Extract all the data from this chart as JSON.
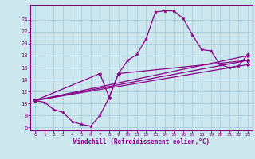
{
  "background_color": "#cce8ee",
  "grid_color": "#a0c8d8",
  "line_color": "#880088",
  "markersize": 3,
  "linewidth": 0.9,
  "xlabel": "Windchill (Refroidissement éolien,°C)",
  "xlim": [
    -0.5,
    23.5
  ],
  "ylim": [
    5.5,
    26.5
  ],
  "xticks": [
    0,
    1,
    2,
    3,
    4,
    5,
    6,
    7,
    8,
    9,
    10,
    11,
    12,
    13,
    14,
    15,
    16,
    17,
    18,
    19,
    20,
    21,
    22,
    23
  ],
  "yticks": [
    6,
    8,
    10,
    12,
    14,
    16,
    18,
    20,
    22,
    24
  ],
  "series_wavy": [
    [
      0,
      10.5
    ],
    [
      1,
      10.2
    ],
    [
      2,
      9.0
    ],
    [
      3,
      8.5
    ],
    [
      4,
      7.0
    ],
    [
      5,
      6.5
    ],
    [
      6,
      6.2
    ],
    [
      7,
      8.0
    ],
    [
      8,
      11.0
    ],
    [
      9,
      15.0
    ],
    [
      10,
      17.2
    ],
    [
      11,
      18.2
    ],
    [
      12,
      20.8
    ],
    [
      13,
      25.3
    ],
    [
      14,
      25.5
    ],
    [
      15,
      25.5
    ],
    [
      16,
      24.2
    ],
    [
      17,
      21.5
    ],
    [
      18,
      19.0
    ],
    [
      19,
      18.8
    ],
    [
      20,
      16.5
    ],
    [
      21,
      16.0
    ],
    [
      22,
      16.3
    ],
    [
      23,
      18.2
    ]
  ],
  "series_line1": [
    [
      0,
      10.5
    ],
    [
      23,
      18.0
    ]
  ],
  "series_line2": [
    [
      0,
      10.5
    ],
    [
      23,
      16.5
    ]
  ],
  "series_line3": [
    [
      0,
      10.5
    ],
    [
      23,
      17.2
    ]
  ],
  "series_diag": [
    [
      0,
      10.5
    ],
    [
      7,
      15.0
    ],
    [
      8,
      11.0
    ],
    [
      9,
      15.0
    ],
    [
      23,
      17.2
    ]
  ]
}
